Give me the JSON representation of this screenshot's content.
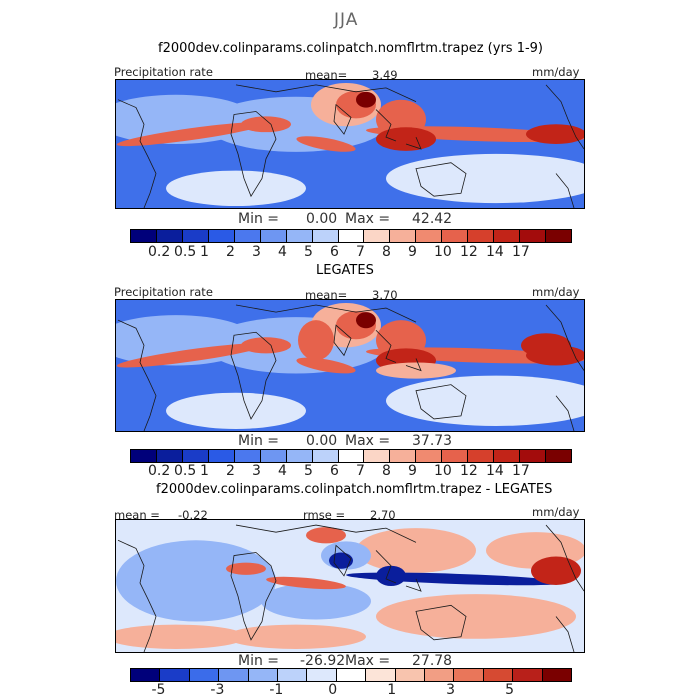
{
  "season": "JJA",
  "panel1": {
    "title": "f2000dev.colinparams.colinpatch.nomflrtm.trapez (yrs 1-9)",
    "field_label": "Precipitation rate",
    "mean_label": "mean=",
    "mean_value": "3.49",
    "units": "mm/day",
    "min_label": "Min =",
    "min_value": "0.00",
    "max_label": "Max =",
    "max_value": "42.42"
  },
  "panel2": {
    "title": "LEGATES",
    "field_label": "Precipitation rate",
    "mean_label": "mean=",
    "mean_value": "3.70",
    "units": "mm/day",
    "min_label": "Min =",
    "min_value": "0.00",
    "max_label": "Max =",
    "max_value": "37.73"
  },
  "panel3": {
    "title": "f2000dev.colinparams.colinpatch.nomflrtm.trapez - LEGATES",
    "mean_label": "mean =",
    "mean_value": "-0.22",
    "rmse_label": "rmse =",
    "rmse_value": "2.70",
    "units": "mm/day",
    "min_label": "Min =",
    "min_value": "-26.92",
    "max_label": "Max =",
    "max_value": "27.78"
  },
  "precip_colorbar": {
    "colors": [
      "#00007a",
      "#0a1e9c",
      "#1a3cc8",
      "#2a5ae6",
      "#4b78ee",
      "#6e96f2",
      "#95b6f7",
      "#bcd2fa",
      "#ffffff",
      "#fbd6c6",
      "#f6b09a",
      "#f08a70",
      "#e6624c",
      "#d6402c",
      "#c22418",
      "#a30c0c",
      "#7a0000"
    ],
    "tick_labels": [
      "0.2",
      "0.5",
      "1",
      "2",
      "3",
      "4",
      "5",
      "6",
      "7",
      "8",
      "9",
      "10",
      "12",
      "14",
      "17"
    ]
  },
  "diff_colorbar": {
    "colors": [
      "#00007a",
      "#1a3cc8",
      "#3b6cea",
      "#6e96f2",
      "#95b6f7",
      "#bcd2fa",
      "#dde8fc",
      "#ffffff",
      "#fce4d8",
      "#f8c4ae",
      "#f29e84",
      "#e9765a",
      "#d64a32",
      "#b8201a",
      "#7a0000"
    ],
    "tick_labels": [
      "-5",
      "-3",
      "-1",
      "0",
      "1",
      "3",
      "5"
    ]
  },
  "map_colors": {
    "base_blue": "#3f70ea",
    "light_blue": "#95b6f7",
    "pale": "#dde8fc",
    "white": "#ffffff",
    "light_red": "#f6b09a",
    "red": "#e6624c",
    "dark_red": "#c22418",
    "darkest_red": "#7a0000",
    "dark_blue": "#0a1e9c",
    "coast": "#1a1a1a"
  }
}
